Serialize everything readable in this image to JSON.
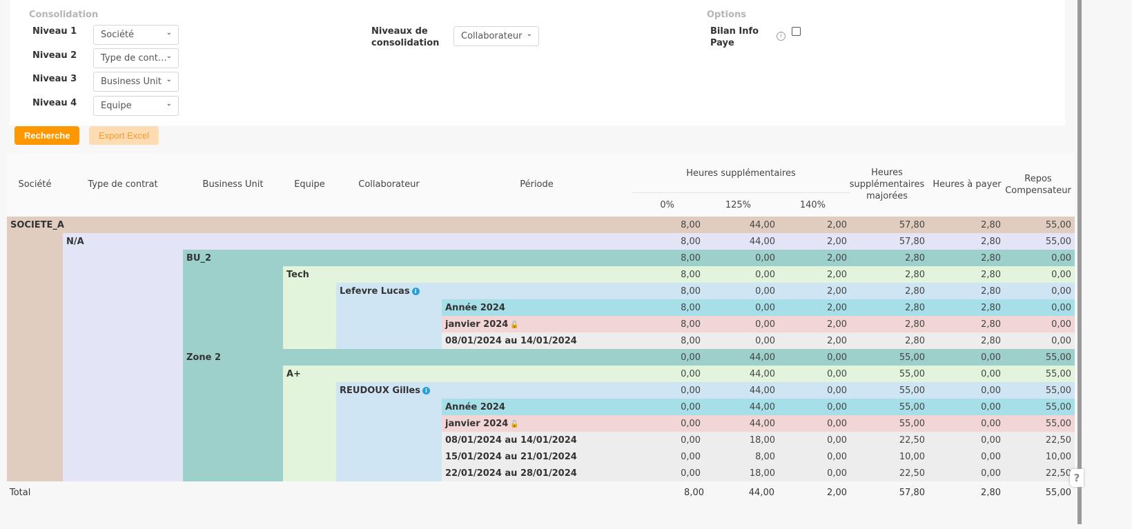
{
  "filters": {
    "consolidation_title": "Consolidation",
    "levels": [
      {
        "label": "Niveau 1",
        "value": "Société"
      },
      {
        "label": "Niveau 2",
        "value": "Type de cont…"
      },
      {
        "label": "Niveau 3",
        "value": "Business Unit"
      },
      {
        "label": "Niveau 4",
        "value": "Equipe"
      }
    ],
    "niveaux_label": "Niveaux de consolidation",
    "niveaux_value": "Collaborateur",
    "options_title": "Options",
    "bilan_label": "Bilan Info Paye",
    "bilan_checked": false
  },
  "buttons": {
    "search": "Recherche",
    "export": "Export Excel"
  },
  "colors": {
    "accent": "#ff9800",
    "accent_light": "#fddbb3"
  },
  "table": {
    "headers": {
      "societe": "Société",
      "type": "Type de contrat",
      "bu": "Business Unit",
      "equipe": "Equipe",
      "collab": "Collaborateur",
      "periode": "Période",
      "hs": "Heures supplémentaires",
      "hs0": "0%",
      "hs125": "125%",
      "hs140": "140%",
      "hsm": "Heures supplémentaires majorées",
      "hap": "Heures à payer",
      "repos": "Repos Compensateur"
    },
    "rows": [
      {
        "level": 0,
        "kind": "societe",
        "label": "SOCIETE_A",
        "values": [
          "8,00",
          "44,00",
          "2,00",
          "57,80",
          "2,80",
          "55,00"
        ]
      },
      {
        "level": 1,
        "kind": "type",
        "label": "N/A",
        "values": [
          "8,00",
          "44,00",
          "2,00",
          "57,80",
          "2,80",
          "55,00"
        ]
      },
      {
        "level": 2,
        "kind": "bu",
        "label": "BU_2",
        "values": [
          "8,00",
          "0,00",
          "2,00",
          "2,80",
          "2,80",
          "0,00"
        ]
      },
      {
        "level": 3,
        "kind": "equipe",
        "label": "Tech",
        "values": [
          "8,00",
          "0,00",
          "2,00",
          "2,80",
          "2,80",
          "0,00"
        ]
      },
      {
        "level": 4,
        "kind": "collab",
        "label": "Lefevre Lucas",
        "icon": "info",
        "values": [
          "8,00",
          "0,00",
          "2,00",
          "2,80",
          "2,80",
          "0,00"
        ]
      },
      {
        "level": 5,
        "kind": "year",
        "label": "Année 2024",
        "values": [
          "8,00",
          "0,00",
          "2,00",
          "2,80",
          "2,80",
          "0,00"
        ]
      },
      {
        "level": 5,
        "kind": "month",
        "label": "janvier 2024",
        "icon": "lock",
        "values": [
          "8,00",
          "0,00",
          "2,00",
          "2,80",
          "2,80",
          "0,00"
        ]
      },
      {
        "level": 5,
        "kind": "week",
        "label": "08/01/2024 au 14/01/2024",
        "values": [
          "8,00",
          "0,00",
          "2,00",
          "2,80",
          "2,80",
          "0,00"
        ]
      },
      {
        "level": 2,
        "kind": "bu",
        "label": "Zone 2",
        "values": [
          "0,00",
          "44,00",
          "0,00",
          "55,00",
          "0,00",
          "55,00"
        ]
      },
      {
        "level": 3,
        "kind": "equipe",
        "label": "A+",
        "values": [
          "0,00",
          "44,00",
          "0,00",
          "55,00",
          "0,00",
          "55,00"
        ]
      },
      {
        "level": 4,
        "kind": "collab",
        "label": "REUDOUX Gilles",
        "icon": "info",
        "values": [
          "0,00",
          "44,00",
          "0,00",
          "55,00",
          "0,00",
          "55,00"
        ]
      },
      {
        "level": 5,
        "kind": "year",
        "label": "Année 2024",
        "values": [
          "0,00",
          "44,00",
          "0,00",
          "55,00",
          "0,00",
          "55,00"
        ]
      },
      {
        "level": 5,
        "kind": "month",
        "label": "janvier 2024",
        "icon": "lock",
        "values": [
          "0,00",
          "44,00",
          "0,00",
          "55,00",
          "0,00",
          "55,00"
        ]
      },
      {
        "level": 5,
        "kind": "week",
        "label": "08/01/2024 au 14/01/2024",
        "values": [
          "0,00",
          "18,00",
          "0,00",
          "22,50",
          "0,00",
          "22,50"
        ]
      },
      {
        "level": 5,
        "kind": "week",
        "label": "15/01/2024 au 21/01/2024",
        "values": [
          "0,00",
          "8,00",
          "0,00",
          "10,00",
          "0,00",
          "10,00"
        ]
      },
      {
        "level": 5,
        "kind": "week",
        "label": "22/01/2024 au 28/01/2024",
        "values": [
          "0,00",
          "18,00",
          "0,00",
          "22,50",
          "0,00",
          "22,50"
        ]
      }
    ],
    "total": {
      "label": "Total",
      "values": [
        "8,00",
        "44,00",
        "2,00",
        "57,80",
        "2,80",
        "55,00"
      ]
    }
  },
  "help": "?"
}
